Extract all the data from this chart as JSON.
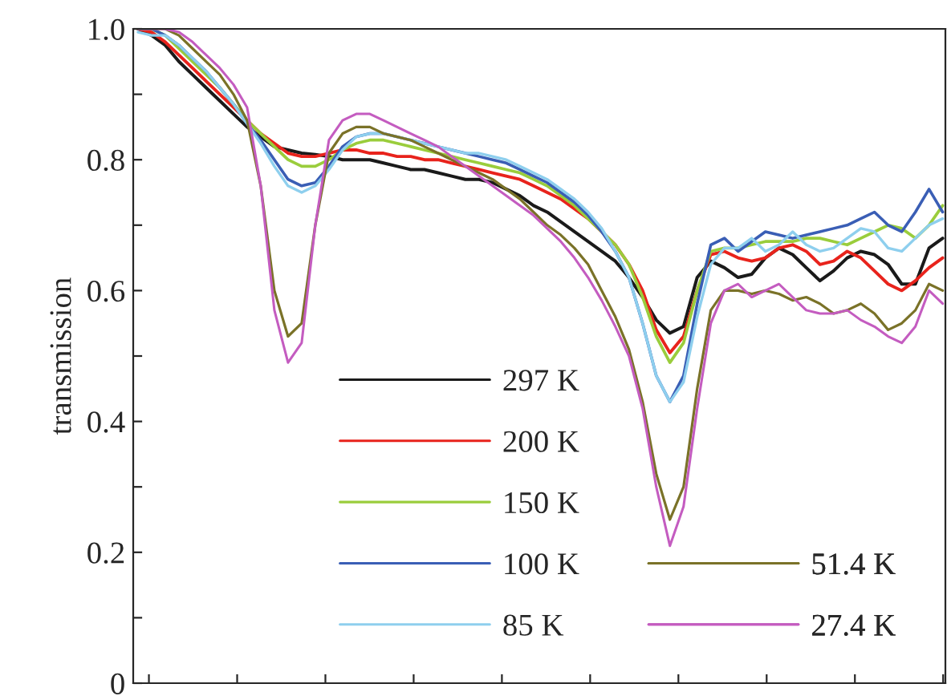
{
  "chart_data": {
    "type": "line",
    "ylabel": "transmission",
    "categories": [
      null,
      null,
      null,
      null,
      null,
      null,
      null,
      null,
      null,
      null,
      null,
      null,
      null,
      null,
      null,
      null,
      null,
      null,
      null,
      null,
      null,
      null,
      null,
      null,
      null,
      null,
      null,
      null,
      null,
      null,
      null,
      null,
      null,
      null,
      null,
      null,
      null,
      null,
      null,
      null,
      null,
      null,
      null,
      null,
      null,
      null,
      null,
      null,
      null,
      null,
      null,
      null,
      null,
      null,
      null,
      null,
      null,
      null,
      null,
      null
    ],
    "ylim": [
      0,
      1
    ],
    "yticks": [
      0,
      {
        "value": 0.1,
        "label": null
      },
      0.2,
      {
        "value": 0.3,
        "label": null
      },
      0.4,
      {
        "value": 0.5,
        "label": null
      },
      0.6,
      {
        "value": 0.7,
        "label": null
      },
      0.8,
      {
        "value": 0.9,
        "label": null
      },
      {
        "value": 1,
        "label": "1.0"
      }
    ],
    "legend": "bottom",
    "grid": false,
    "marker": "none",
    "line_style": "solid",
    "series": [
      {
        "name": "297 K",
        "color": "#1a1a1a",
        "values": [
          1.0,
          0.99,
          0.975,
          0.95,
          0.93,
          0.91,
          0.89,
          0.87,
          0.85,
          0.835,
          0.82,
          0.815,
          0.81,
          0.808,
          0.805,
          0.8,
          0.8,
          0.8,
          0.795,
          0.79,
          0.785,
          0.785,
          0.78,
          0.775,
          0.77,
          0.77,
          0.765,
          0.755,
          0.745,
          0.73,
          0.72,
          0.705,
          0.69,
          0.675,
          0.66,
          0.645,
          0.62,
          0.59,
          0.555,
          0.535,
          0.545,
          0.62,
          0.645,
          0.635,
          0.62,
          0.625,
          0.65,
          0.665,
          0.655,
          0.635,
          0.615,
          0.63,
          0.65,
          0.66,
          0.655,
          0.64,
          0.61,
          0.61,
          0.665,
          0.68
        ]
      },
      {
        "name": "200 K",
        "color": "#e8231c",
        "values": [
          1.0,
          0.995,
          0.98,
          0.96,
          0.94,
          0.92,
          0.9,
          0.88,
          0.86,
          0.84,
          0.825,
          0.81,
          0.805,
          0.805,
          0.81,
          0.815,
          0.815,
          0.81,
          0.81,
          0.805,
          0.805,
          0.8,
          0.8,
          0.795,
          0.79,
          0.785,
          0.78,
          0.775,
          0.77,
          0.76,
          0.75,
          0.74,
          0.725,
          0.71,
          0.69,
          0.67,
          0.64,
          0.6,
          0.54,
          0.505,
          0.53,
          0.6,
          0.655,
          0.66,
          0.65,
          0.645,
          0.65,
          0.665,
          0.67,
          0.66,
          0.64,
          0.645,
          0.66,
          0.65,
          0.63,
          0.61,
          0.6,
          0.615,
          0.635,
          0.65
        ]
      },
      {
        "name": "150 K",
        "color": "#9acd3c",
        "values": [
          1.0,
          1.0,
          0.99,
          0.97,
          0.95,
          0.93,
          0.91,
          0.885,
          0.86,
          0.84,
          0.82,
          0.8,
          0.79,
          0.79,
          0.8,
          0.815,
          0.825,
          0.83,
          0.83,
          0.825,
          0.82,
          0.815,
          0.81,
          0.805,
          0.8,
          0.795,
          0.79,
          0.785,
          0.78,
          0.77,
          0.76,
          0.745,
          0.73,
          0.71,
          0.69,
          0.67,
          0.64,
          0.59,
          0.53,
          0.49,
          0.52,
          0.6,
          0.66,
          0.665,
          0.665,
          0.67,
          0.675,
          0.675,
          0.675,
          0.68,
          0.68,
          0.675,
          0.67,
          0.68,
          0.69,
          0.7,
          0.695,
          0.68,
          0.7,
          0.73
        ]
      },
      {
        "name": "100 K",
        "color": "#3a5eb5",
        "values": [
          1.0,
          1.0,
          0.99,
          0.975,
          0.955,
          0.935,
          0.91,
          0.885,
          0.855,
          0.83,
          0.8,
          0.77,
          0.76,
          0.765,
          0.79,
          0.82,
          0.835,
          0.84,
          0.84,
          0.835,
          0.83,
          0.825,
          0.82,
          0.815,
          0.81,
          0.805,
          0.8,
          0.795,
          0.785,
          0.775,
          0.765,
          0.75,
          0.735,
          0.715,
          0.69,
          0.66,
          0.62,
          0.55,
          0.47,
          0.43,
          0.47,
          0.58,
          0.67,
          0.68,
          0.66,
          0.675,
          0.69,
          0.685,
          0.68,
          0.685,
          0.69,
          0.695,
          0.7,
          0.71,
          0.72,
          0.7,
          0.69,
          0.72,
          0.755,
          0.72
        ]
      },
      {
        "name": "85 K",
        "color": "#8ecfee",
        "values": [
          0.995,
          0.99,
          0.99,
          0.975,
          0.955,
          0.935,
          0.91,
          0.885,
          0.855,
          0.825,
          0.79,
          0.76,
          0.75,
          0.76,
          0.785,
          0.815,
          0.835,
          0.84,
          0.84,
          0.835,
          0.83,
          0.825,
          0.82,
          0.815,
          0.81,
          0.81,
          0.805,
          0.8,
          0.79,
          0.78,
          0.77,
          0.755,
          0.74,
          0.72,
          0.695,
          0.66,
          0.62,
          0.55,
          0.47,
          0.43,
          0.46,
          0.56,
          0.64,
          0.665,
          0.665,
          0.68,
          0.66,
          0.67,
          0.69,
          0.67,
          0.66,
          0.665,
          0.68,
          0.695,
          0.69,
          0.665,
          0.66,
          0.68,
          0.7,
          0.71
        ]
      },
      {
        "name": "51.4 K",
        "color": "#7a7228",
        "values": [
          1.0,
          1.0,
          1.0,
          0.99,
          0.97,
          0.95,
          0.93,
          0.9,
          0.86,
          0.76,
          0.6,
          0.53,
          0.55,
          0.7,
          0.81,
          0.84,
          0.85,
          0.85,
          0.84,
          0.835,
          0.83,
          0.82,
          0.81,
          0.8,
          0.79,
          0.78,
          0.77,
          0.755,
          0.74,
          0.72,
          0.7,
          0.685,
          0.665,
          0.64,
          0.6,
          0.56,
          0.51,
          0.43,
          0.32,
          0.25,
          0.3,
          0.45,
          0.57,
          0.6,
          0.6,
          0.595,
          0.6,
          0.595,
          0.585,
          0.59,
          0.58,
          0.565,
          0.57,
          0.58,
          0.565,
          0.54,
          0.55,
          0.57,
          0.61,
          0.6
        ]
      },
      {
        "name": "27.4 K",
        "color": "#c45cc0",
        "values": [
          1.0,
          1.0,
          1.0,
          0.995,
          0.98,
          0.96,
          0.94,
          0.915,
          0.88,
          0.76,
          0.57,
          0.49,
          0.52,
          0.7,
          0.83,
          0.86,
          0.87,
          0.87,
          0.86,
          0.85,
          0.84,
          0.83,
          0.82,
          0.805,
          0.79,
          0.775,
          0.76,
          0.745,
          0.73,
          0.715,
          0.695,
          0.675,
          0.65,
          0.62,
          0.585,
          0.545,
          0.5,
          0.42,
          0.3,
          0.21,
          0.27,
          0.42,
          0.55,
          0.6,
          0.61,
          0.59,
          0.6,
          0.61,
          0.59,
          0.57,
          0.565,
          0.565,
          0.57,
          0.555,
          0.545,
          0.53,
          0.52,
          0.545,
          0.6,
          0.58
        ]
      }
    ]
  }
}
